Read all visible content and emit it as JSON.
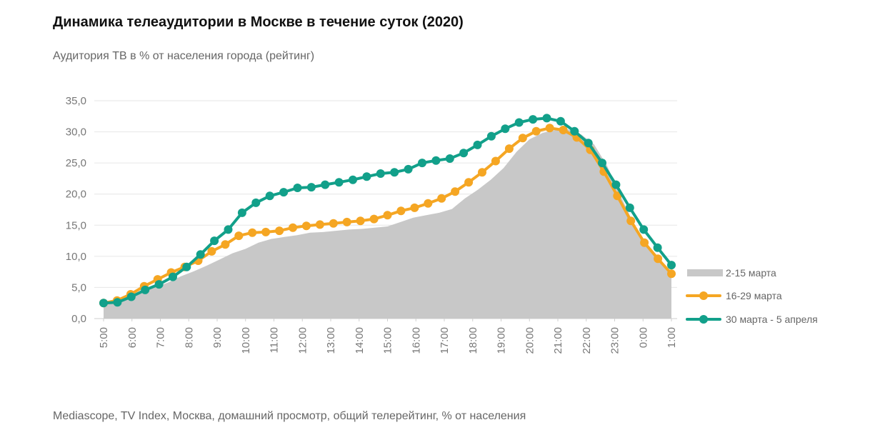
{
  "header": {
    "title": "Динамика телеаудитории в Москве в течение суток (2020)",
    "subtitle": "Аудитория ТВ в % от населения города (рейтинг)"
  },
  "footer": {
    "source": "Mediascope, TV Index, Москва, домашний просмотр, общий телерейтинг, % от населения"
  },
  "chart_data": {
    "type": "line",
    "title": "Динамика телеаудитории в Москве в течение суток (2020)",
    "subtitle": "Аудитория ТВ в % от населения города (рейтинг)",
    "xlabel": "",
    "ylabel": "",
    "ylim": [
      0,
      35
    ],
    "y_ticks": [
      "0,0",
      "5,0",
      "10,0",
      "15,0",
      "20,0",
      "25,0",
      "30,0",
      "35,0"
    ],
    "x_tick_labels": [
      "5:00",
      "6:00",
      "7:00",
      "8:00",
      "9:00",
      "10:00",
      "11:00",
      "12:00",
      "13:00",
      "14:00",
      "15:00",
      "16:00",
      "17:00",
      "18:00",
      "19:00",
      "20:00",
      "21:00",
      "22:00",
      "23:00",
      "0:00",
      "1:00"
    ],
    "grid": "horizontal",
    "legend_position": "right",
    "series": [
      {
        "name": "2-15 марта",
        "style": "area",
        "color": "#c8c8c8",
        "values": [
          2.5,
          2.8,
          3.3,
          4.2,
          5.0,
          5.8,
          6.8,
          7.6,
          8.5,
          9.5,
          10.5,
          11.2,
          12.2,
          12.8,
          13.1,
          13.4,
          13.8,
          13.9,
          14.1,
          14.3,
          14.4,
          14.6,
          14.8,
          15.5,
          16.2,
          16.6,
          17.0,
          17.6,
          19.3,
          20.7,
          22.3,
          24.2,
          26.8,
          28.8,
          29.8,
          30.3,
          30.4,
          29.6,
          28.0,
          24.6,
          20.0,
          15.6,
          12.1,
          9.3,
          7.2
        ]
      },
      {
        "name": "16-29 марта",
        "style": "line",
        "color": "#f5a623",
        "values": [
          2.5,
          2.9,
          3.9,
          5.2,
          6.3,
          7.4,
          8.3,
          9.3,
          10.8,
          11.9,
          13.3,
          13.8,
          13.9,
          14.1,
          14.6,
          14.9,
          15.1,
          15.3,
          15.5,
          15.7,
          16.0,
          16.6,
          17.3,
          17.8,
          18.5,
          19.3,
          20.4,
          21.9,
          23.5,
          25.3,
          27.3,
          29.0,
          30.1,
          30.6,
          30.3,
          29.1,
          27.1,
          23.6,
          19.7,
          15.7,
          12.2,
          9.6,
          7.2
        ]
      },
      {
        "name": "30 марта - 5 апреля",
        "style": "line",
        "color": "#12a08a",
        "values": [
          2.5,
          2.6,
          3.5,
          4.6,
          5.5,
          6.7,
          8.3,
          10.3,
          12.5,
          14.3,
          17.0,
          18.6,
          19.7,
          20.3,
          21.0,
          21.1,
          21.5,
          21.9,
          22.3,
          22.8,
          23.3,
          23.5,
          24.0,
          25.0,
          25.4,
          25.7,
          26.6,
          27.9,
          29.3,
          30.5,
          31.5,
          32.0,
          32.2,
          31.7,
          30.1,
          28.2,
          25.0,
          21.5,
          17.8,
          14.3,
          11.4,
          8.6
        ]
      }
    ]
  }
}
